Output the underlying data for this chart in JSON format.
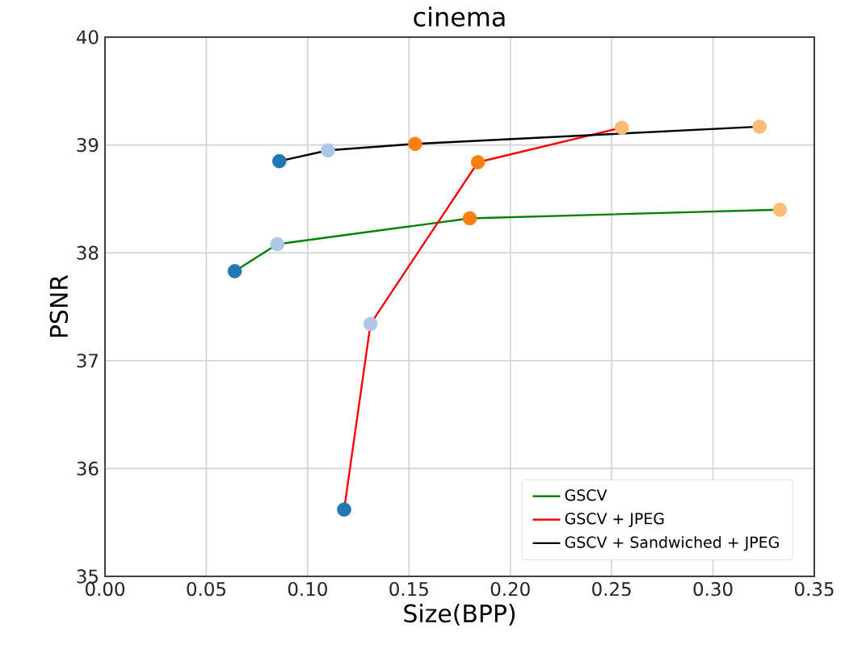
{
  "chart_data": {
    "type": "line",
    "title": "cinema",
    "xlabel": "Size(BPP)",
    "ylabel": "PSNR",
    "xlim": [
      0,
      0.35
    ],
    "xticks": [
      {
        "value": 0,
        "label": "0.00"
      },
      {
        "value": 0.05,
        "label": "0.05"
      },
      {
        "value": 0.1,
        "label": "0.10"
      },
      {
        "value": 0.15,
        "label": "0.15"
      },
      {
        "value": 0.2,
        "label": "0.20"
      },
      {
        "value": 0.25,
        "label": "0.25"
      },
      {
        "value": 0.3,
        "label": "0.30"
      },
      {
        "value": 0.35,
        "label": "0.35"
      }
    ],
    "ylim": [
      35,
      40
    ],
    "yticks": [
      35,
      36,
      37,
      38,
      39,
      40
    ],
    "grid": true,
    "legend": "bottom right",
    "marker": "circle",
    "line_style": "solid",
    "series": [
      {
        "name": "GSCV",
        "color": "#008000",
        "x": [
          0.064,
          0.085,
          0.18,
          0.333
        ],
        "values": [
          37.83,
          38.08,
          38.32,
          38.4
        ],
        "colors": [
          "#1f77b4",
          "#aec7e8",
          "#ff7f0e",
          "#ffbb78"
        ]
      },
      {
        "name": "GSCV + JPEG",
        "color": "#ff0000",
        "x": [
          0.118,
          0.131,
          0.184,
          0.255
        ],
        "values": [
          35.62,
          37.34,
          38.84,
          39.16
        ],
        "colors": [
          "#1f77b4",
          "#aec7e8",
          "#ff7f0e",
          "#ffbb78"
        ]
      },
      {
        "name": "GSCV + Sandwiched + JPEG",
        "color": "#000000",
        "x": [
          0.086,
          0.11,
          0.153,
          0.323
        ],
        "values": [
          38.85,
          38.95,
          39.01,
          39.17
        ],
        "colors": [
          "#1f77b4",
          "#aec7e8",
          "#ff7f0e",
          "#ffbb78"
        ]
      }
    ]
  }
}
